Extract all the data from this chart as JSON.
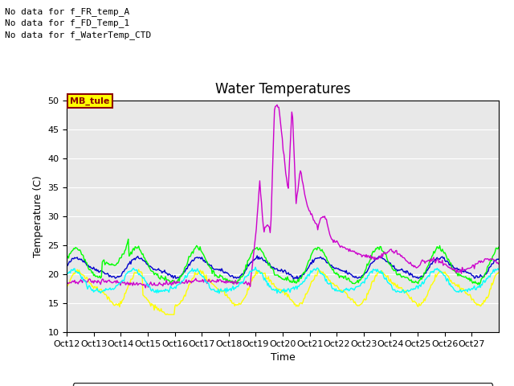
{
  "title": "Water Temperatures",
  "ylabel": "Temperature (C)",
  "xlabel": "Time",
  "xlim": [
    0,
    16
  ],
  "ylim": [
    10,
    50
  ],
  "yticks": [
    10,
    15,
    20,
    25,
    30,
    35,
    40,
    45,
    50
  ],
  "xtick_labels": [
    "Oct 12",
    "Oct 13",
    "Oct 14",
    "Oct 15",
    "Oct 16",
    "Oct 17",
    "Oct 18",
    "Oct 19",
    "Oct 20",
    "Oct 21",
    "Oct 22",
    "Oct 23",
    "Oct 24",
    "Oct 25",
    "Oct 26",
    "Oct 27"
  ],
  "annotations": [
    "No data for f_FR_temp_A",
    "No data for f_FD_Temp_1",
    "No data for f_WaterTemp_CTD"
  ],
  "colors": {
    "FR_temp_B": "#0000cc",
    "FR_temp_C": "#00ff00",
    "WaterT": "#ffff00",
    "CondTemp": "#cc00cc",
    "MDTemp_A": "#00ffff"
  },
  "bg_color": "#e8e8e8",
  "title_fontsize": 12,
  "axes_fontsize": 9,
  "tick_fontsize": 8,
  "annot_fontsize": 8
}
